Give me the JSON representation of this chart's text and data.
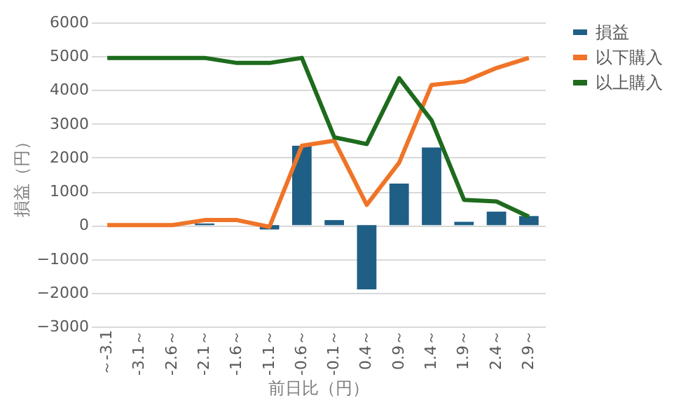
{
  "chart_data": {
    "type": "bar",
    "xlabel": "前日比（円）",
    "ylabel": "損益（円）",
    "categories": [
      "～-3.1",
      "-3.1～",
      "-2.6～",
      "-2.1～",
      "-1.6～",
      "-1.1～",
      "-0.6～",
      "-0.1～",
      "0.4～",
      "0.9～",
      "1.4～",
      "1.9～",
      "2.4～",
      "2.9～"
    ],
    "series": [
      {
        "name": "損益",
        "color": "#1f5f86",
        "values": [
          0,
          0,
          0,
          50,
          0,
          -130,
          2350,
          150,
          -1900,
          1230,
          2300,
          100,
          400,
          270
        ]
      },
      {
        "name": "以下購入",
        "type": "line",
        "color": "#f07428",
        "values": [
          0,
          0,
          0,
          150,
          150,
          -50,
          2350,
          2500,
          600,
          1850,
          4150,
          4250,
          4650,
          4950
        ]
      },
      {
        "name": "以上購入",
        "type": "line",
        "color": "#1e6b1e",
        "values": [
          4950,
          4950,
          4950,
          4950,
          4800,
          4800,
          4950,
          2600,
          2400,
          4350,
          3100,
          750,
          700,
          250
        ]
      }
    ],
    "ylim": [
      -3000,
      6000
    ],
    "yticks": [
      -3000,
      -2000,
      -1000,
      0,
      1000,
      2000,
      3000,
      4000,
      5000,
      6000
    ],
    "grid": "y",
    "legend": "right",
    "marker": "none"
  }
}
